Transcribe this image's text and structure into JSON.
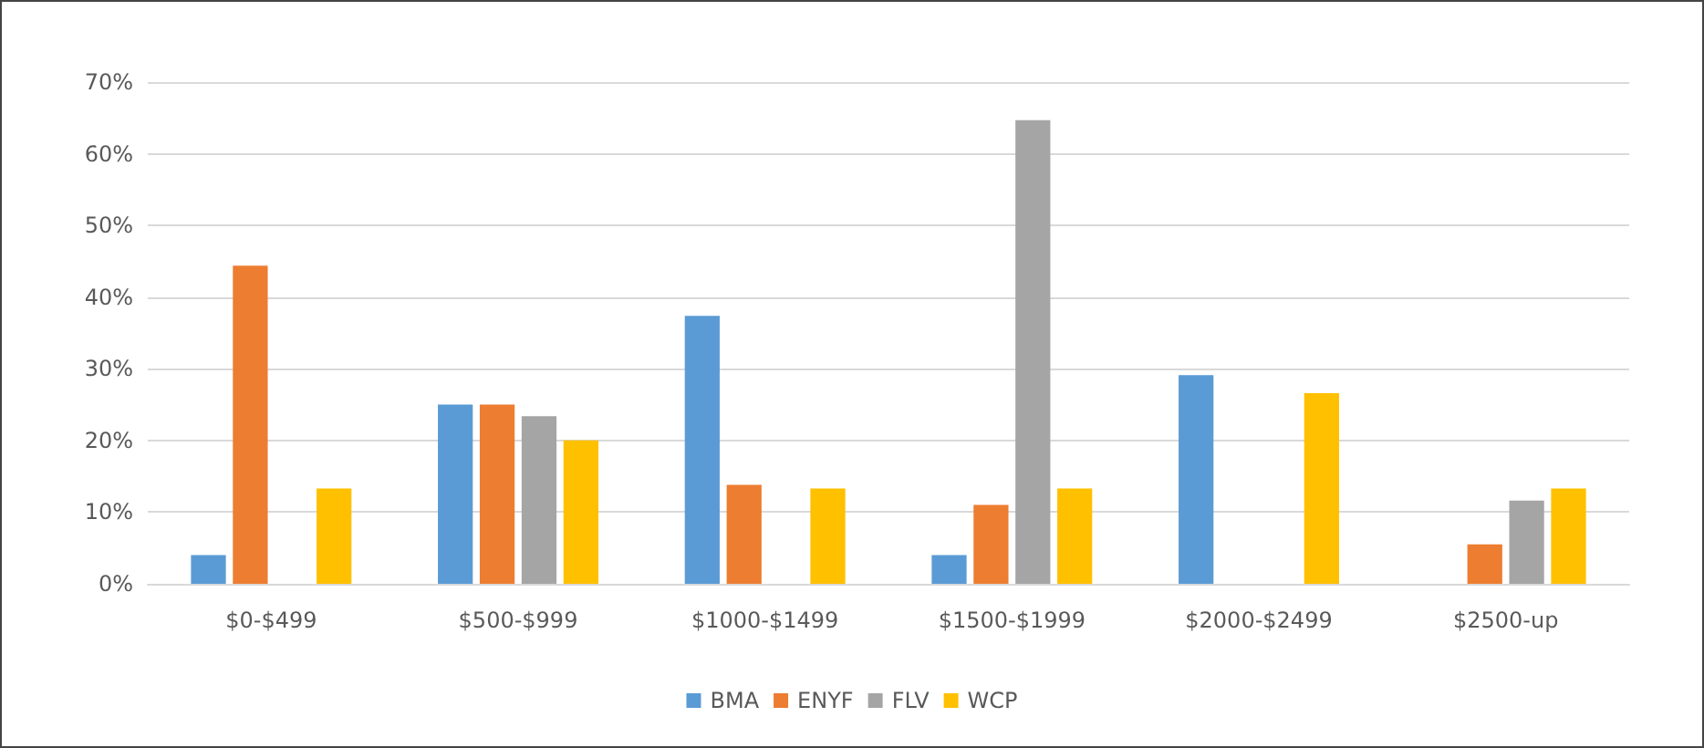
{
  "chart_data": {
    "type": "bar",
    "categories": [
      "$0-$499",
      "$500-$999",
      "$1000-$1499",
      "$1500-$1999",
      "$2000-$2499",
      "$2500-up"
    ],
    "series": [
      {
        "name": "BMA",
        "color": "#5b9bd5",
        "values": [
          4,
          25,
          37.4,
          4,
          29.1,
          null
        ]
      },
      {
        "name": "ENYF",
        "color": "#ed7d31",
        "values": [
          44.4,
          25,
          13.8,
          11,
          null,
          5.5
        ]
      },
      {
        "name": "FLV",
        "color": "#a5a5a5",
        "values": [
          null,
          23.4,
          null,
          64.7,
          null,
          11.6
        ]
      },
      {
        "name": "WCP",
        "color": "#ffc000",
        "values": [
          13.3,
          20,
          13.3,
          13.3,
          26.6,
          13.3
        ]
      }
    ],
    "ylim": [
      0,
      70
    ],
    "yticks": [
      {
        "value": 0,
        "label": "0%"
      },
      {
        "value": 10,
        "label": "10%"
      },
      {
        "value": 20,
        "label": "20%"
      },
      {
        "value": 30,
        "label": "30%"
      },
      {
        "value": 40,
        "label": "40%"
      },
      {
        "value": 50,
        "label": "50%"
      },
      {
        "value": 60,
        "label": "60%"
      },
      {
        "value": 70,
        "label": "70%"
      }
    ],
    "grid": "y",
    "legend": "bottom"
  }
}
